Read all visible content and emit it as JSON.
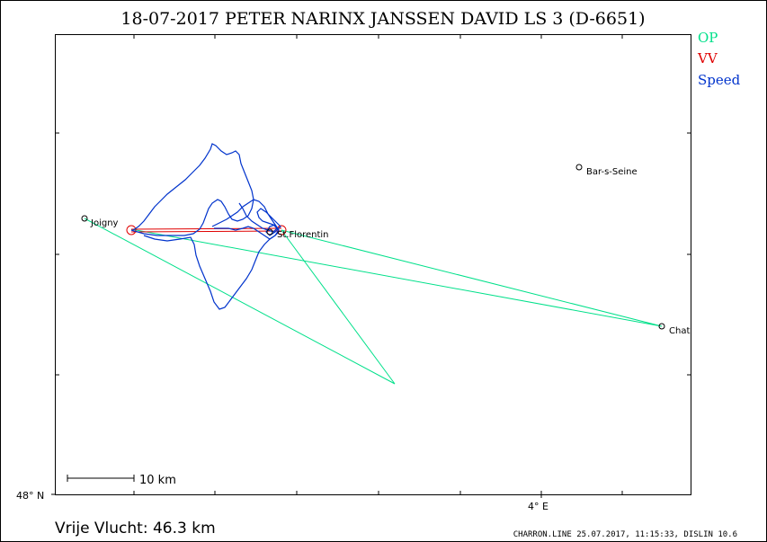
{
  "title": "18-07-2017    PETER NARINX JANSSEN DAVID    LS 3 (D-6651)",
  "legend": [
    {
      "label": "OP",
      "color": "#00e08a"
    },
    {
      "label": "VV",
      "color": "#e00000"
    },
    {
      "label": "Speed",
      "color": "#0033cc"
    }
  ],
  "places": [
    {
      "name": "Joigny"
    },
    {
      "name": "St.Florentin"
    },
    {
      "name": "Bar-s-Seine"
    },
    {
      "name": "Chat"
    }
  ],
  "axis": {
    "lat_label": "48° N",
    "lon_label": "4° E"
  },
  "scale_bar": {
    "label": "10  km"
  },
  "footer": {
    "distance": "Vrije Vlucht:   46.3 km",
    "credit": "CHARRON.LINE 25.07.2017, 11:15:33, DISLIN 10.6"
  },
  "colors": {
    "op": "#00e08a",
    "vv": "#e00000",
    "track": "#0033cc",
    "frame": "#000000"
  }
}
